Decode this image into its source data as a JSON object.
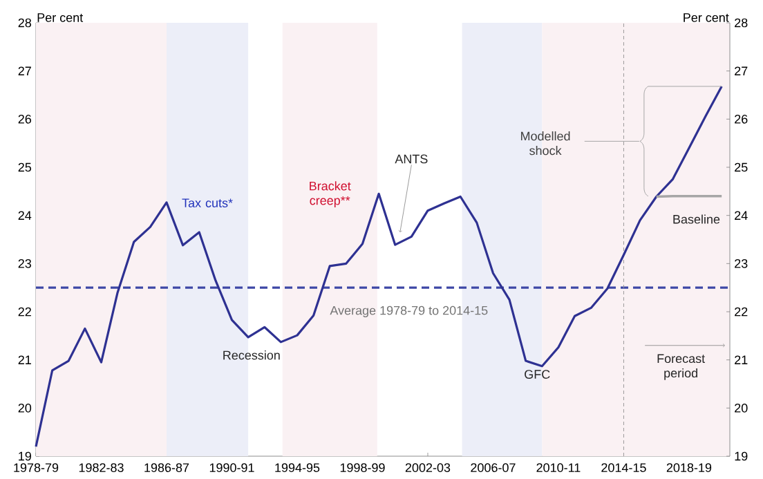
{
  "chart_data": {
    "type": "line",
    "ylabel": "Per cent",
    "y2label": "Per cent",
    "categories": [
      "1978-79",
      null,
      null,
      null,
      "1982-83",
      null,
      null,
      null,
      "1986-87",
      null,
      null,
      null,
      "1990-91",
      null,
      null,
      null,
      "1994-95",
      null,
      null,
      null,
      "1998-99",
      null,
      null,
      null,
      "2002-03",
      null,
      null,
      null,
      "2006-07",
      null,
      null,
      null,
      "2010-11",
      null,
      null,
      null,
      "2014-15",
      null,
      null,
      null,
      "2018-19",
      null,
      null
    ],
    "series": [
      {
        "color": "#2e3192",
        "values": [
          19.2,
          20.78,
          20.98,
          21.65,
          20.95,
          22.4,
          23.45,
          23.76,
          24.27,
          23.38,
          23.65,
          22.65,
          21.83,
          21.47,
          21.68,
          21.37,
          21.51,
          21.92,
          22.95,
          23.0,
          23.41,
          24.45,
          23.39,
          23.56,
          24.1,
          24.25,
          24.39,
          23.85,
          22.8,
          22.25,
          20.98,
          20.87,
          21.26,
          21.91,
          22.08,
          22.48,
          23.18,
          23.9,
          24.39,
          24.75,
          25.4,
          26.05,
          26.68
        ]
      },
      {
        "name": "Baseline",
        "color": "#a6a6a6",
        "values": [
          null,
          null,
          null,
          null,
          null,
          null,
          null,
          null,
          null,
          null,
          null,
          null,
          null,
          null,
          null,
          null,
          null,
          null,
          null,
          null,
          null,
          null,
          null,
          null,
          null,
          null,
          null,
          null,
          null,
          null,
          null,
          null,
          null,
          null,
          null,
          null,
          null,
          null,
          24.39,
          24.4,
          24.4,
          24.4,
          24.4
        ]
      }
    ],
    "ylim": [
      19,
      28
    ],
    "yticks": [
      19,
      20,
      21,
      22,
      23,
      24,
      25,
      26,
      27,
      28
    ],
    "y2lim": [
      19,
      28
    ],
    "y2ticks": [
      19,
      20,
      21,
      22,
      23,
      24,
      25,
      26,
      27,
      28
    ],
    "ref_lines": [
      {
        "axis": "y",
        "value": 22.5,
        "label": "Average 1978-79 to 2014-15",
        "color": "#3d47a6",
        "line_style": "dashed"
      },
      {
        "axis": "x",
        "value": "2014-15",
        "color": "#909090",
        "line_style": "dashed"
      }
    ],
    "annotations": [
      "ANTS",
      "Recession",
      "GFC",
      "Modelled shock",
      "Forecast period",
      "Tax cuts*",
      "Bracket creep**"
    ],
    "line_style": "solid",
    "marker": "none"
  }
}
